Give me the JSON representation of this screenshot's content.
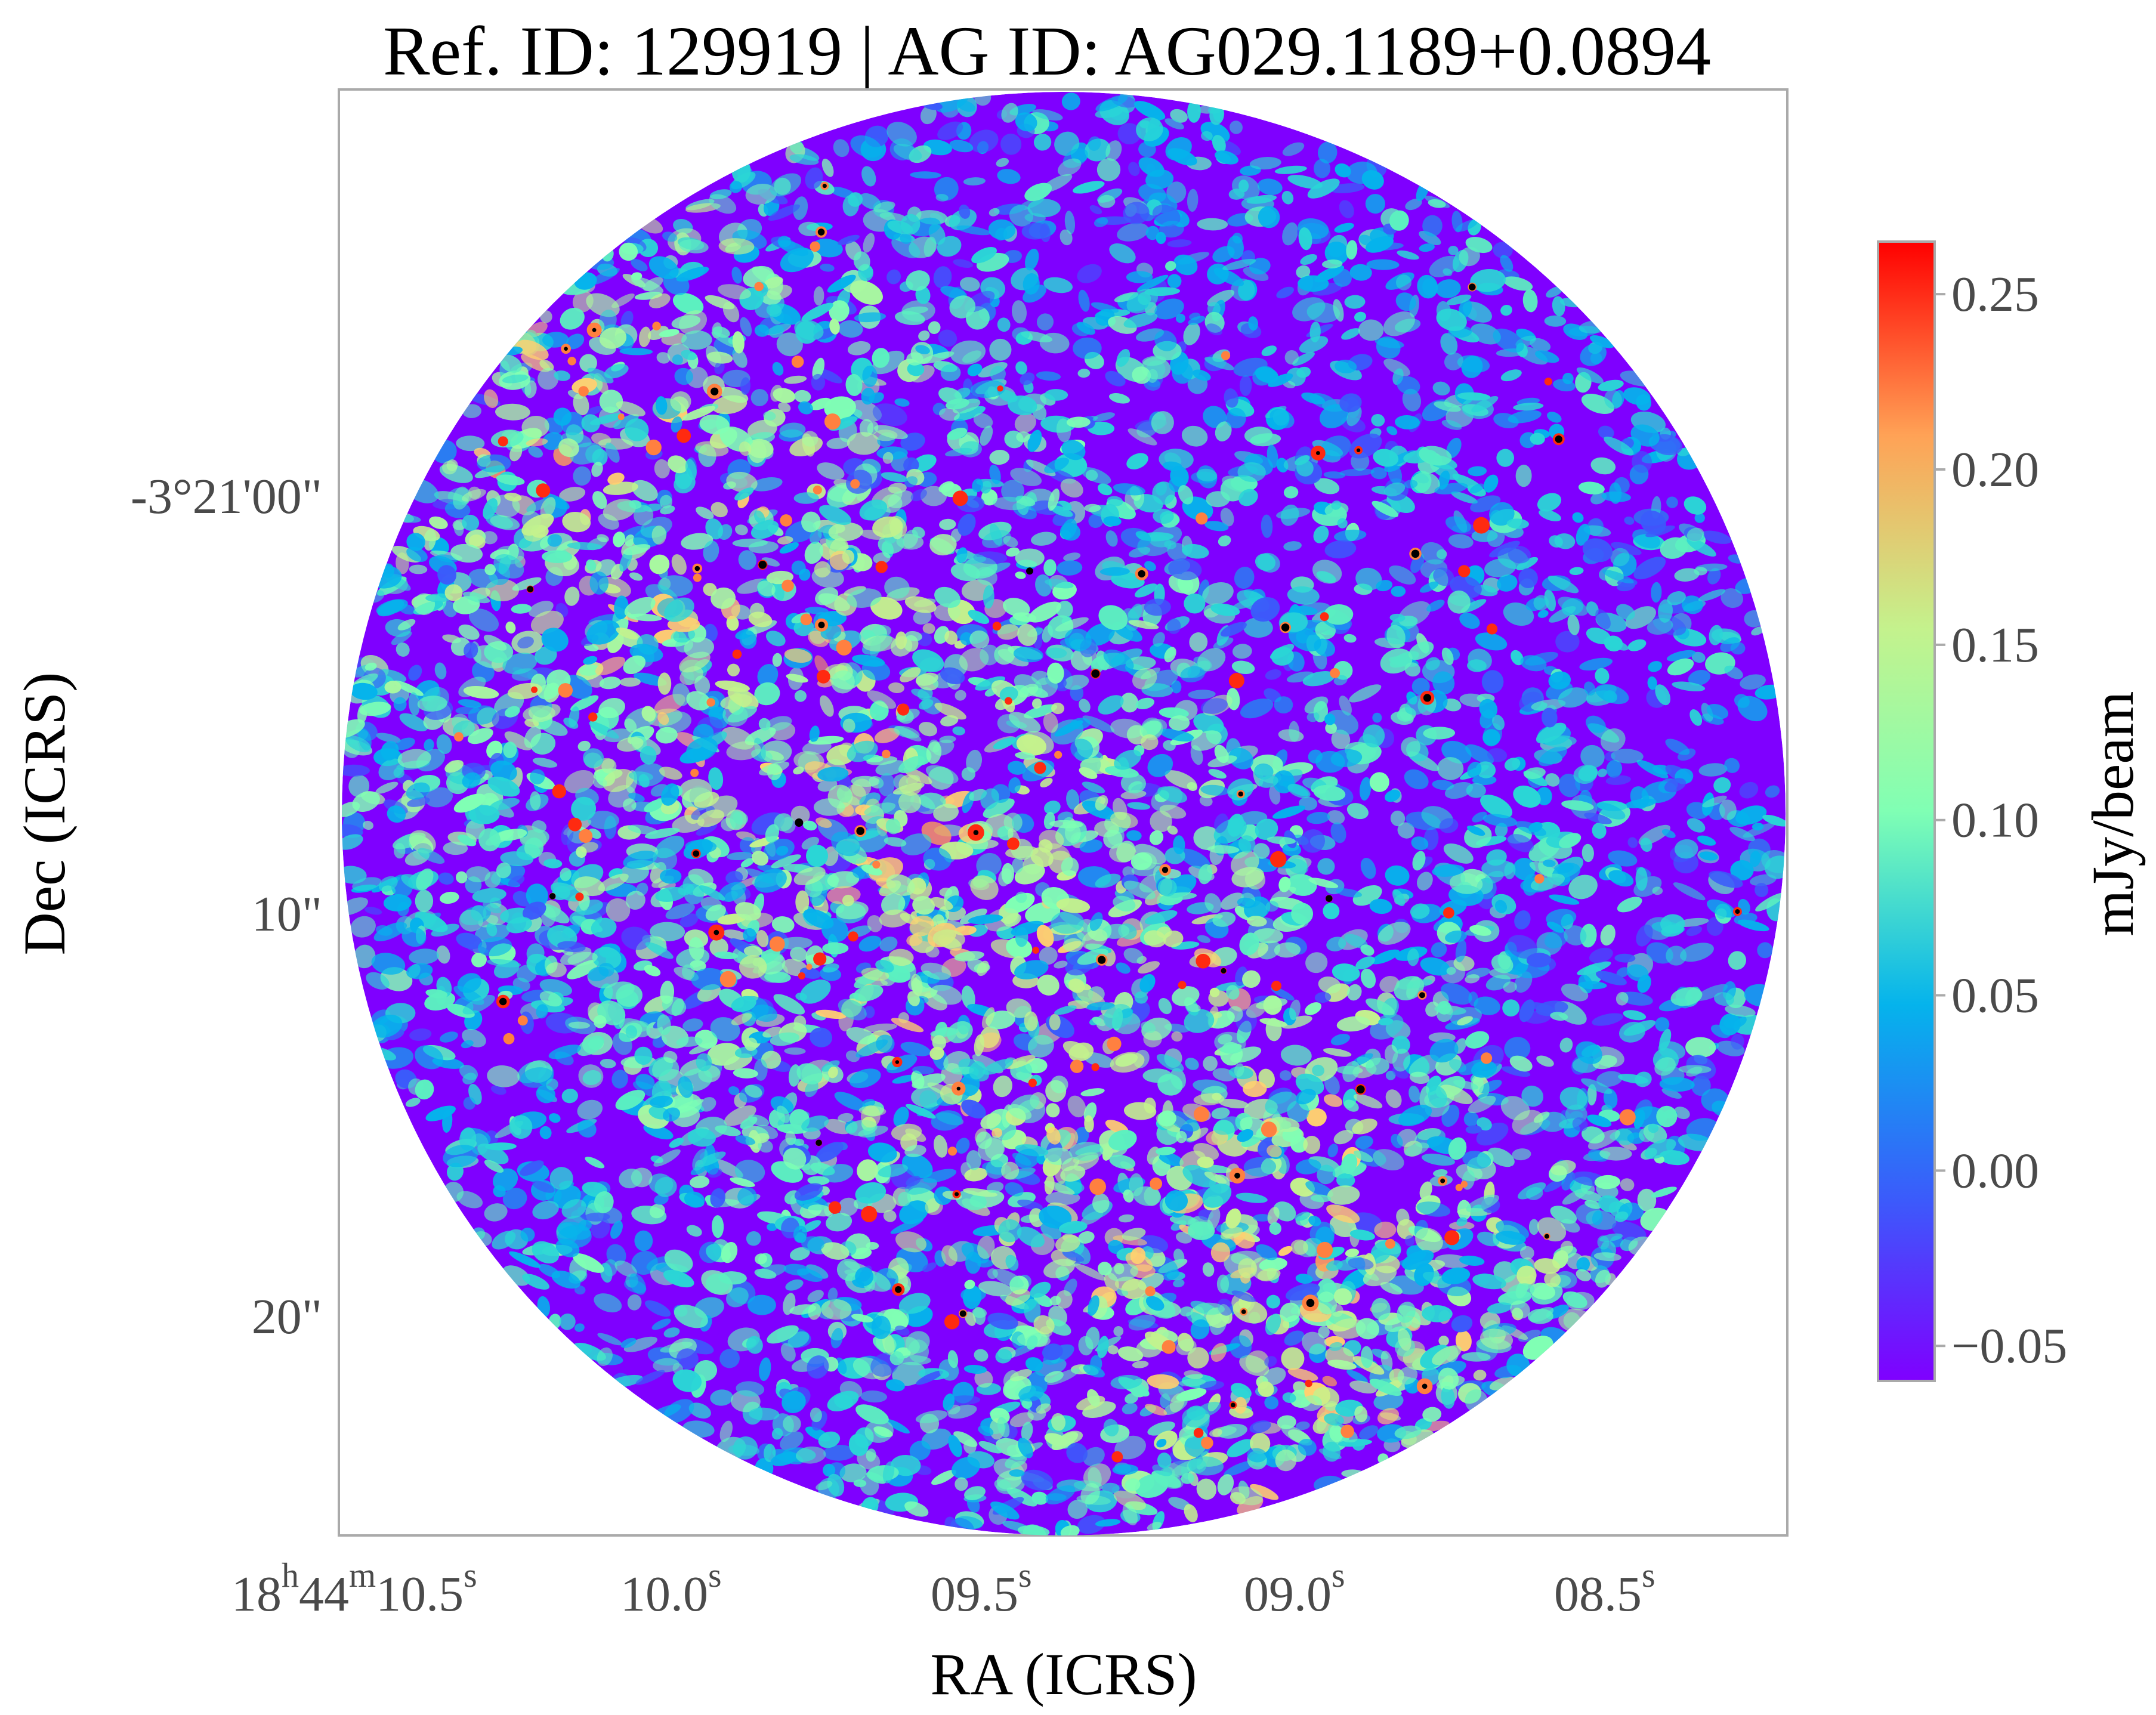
{
  "chart_data": {
    "type": "heatmap",
    "title": "Ref. ID: 129919 | AG ID: AG029.1189+0.0894",
    "xlabel": "RA (ICRS)",
    "ylabel": "Dec (ICRS)",
    "x_ticks": [
      {
        "main": "18",
        "h": "h",
        "min": "44",
        "m": "m",
        "sec": "10.5",
        "s": "s"
      },
      {
        "sec": "10.0",
        "s": "s"
      },
      {
        "sec": "09.5",
        "s": "s"
      },
      {
        "sec": "09.0",
        "s": "s"
      },
      {
        "sec": "08.5",
        "s": "s"
      }
    ],
    "y_ticks": [
      "-3°21'00\"",
      "10\"",
      "20\""
    ],
    "colorbar": {
      "label": "mJy/beam",
      "min": -0.06,
      "max": 0.265,
      "ticks": [
        "0.25",
        "0.20",
        "0.15",
        "0.10",
        "0.05",
        "0.00",
        "−0.05"
      ],
      "tick_values": [
        0.25,
        0.2,
        0.15,
        0.1,
        0.05,
        0.0,
        -0.05
      ],
      "colormap": "rainbow"
    },
    "field_shape": "circular",
    "grid": false,
    "colors": {
      "low": "#7f00ff",
      "mid": "#80ffb4",
      "high": "#ff0000",
      "peak": "#000000"
    }
  }
}
